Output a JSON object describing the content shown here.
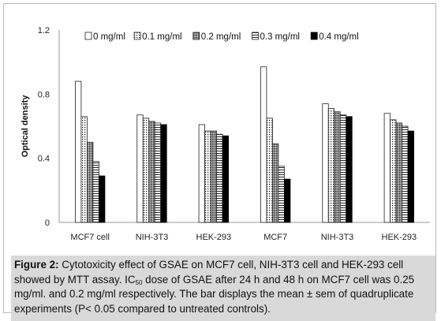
{
  "chart_data": {
    "type": "bar",
    "ylabel": "Optical density",
    "ylim": [
      0,
      1.2
    ],
    "yticks": [
      "0",
      "0.4",
      "0.8",
      "1.2"
    ],
    "categories": [
      "MCF7 cell",
      "NIH-3T3",
      "HEK-293",
      "MCF7",
      "NIH-3T3",
      "HEK-293"
    ],
    "series": [
      {
        "name": "0 mg/ml",
        "pattern": "white",
        "values": [
          0.88,
          0.67,
          0.61,
          0.97,
          0.74,
          0.68
        ]
      },
      {
        "name": "0.1 mg/ml",
        "pattern": "dots",
        "values": [
          0.66,
          0.65,
          0.57,
          0.65,
          0.71,
          0.64
        ]
      },
      {
        "name": "0.2 mg/ml",
        "pattern": "grey-dots",
        "values": [
          0.5,
          0.63,
          0.57,
          0.49,
          0.69,
          0.62
        ]
      },
      {
        "name": "0.3 mg/ml",
        "pattern": "hlines",
        "values": [
          0.38,
          0.62,
          0.55,
          0.35,
          0.67,
          0.6
        ]
      },
      {
        "name": "0.4 mg/ml",
        "pattern": "black",
        "values": [
          0.29,
          0.61,
          0.54,
          0.27,
          0.66,
          0.57
        ]
      }
    ],
    "legend_position": "top",
    "grid": false
  },
  "caption": {
    "label": "Figure 2:",
    "line1": " Cytotoxicity effect of GSAE on MCF7 cell, NIH-3T3 cell and HEK-293 cell showed by MTT assay. IC",
    "sub": "50",
    "line2": " dose of GSAE after 24 h and 48 h on MCF7 cell was 0.25 mg/ml. and 0.2 mg/ml respectively. The bar displays the mean ± sem of quadruplicate experiments (P< 0.05 compared to untreated controls)."
  }
}
